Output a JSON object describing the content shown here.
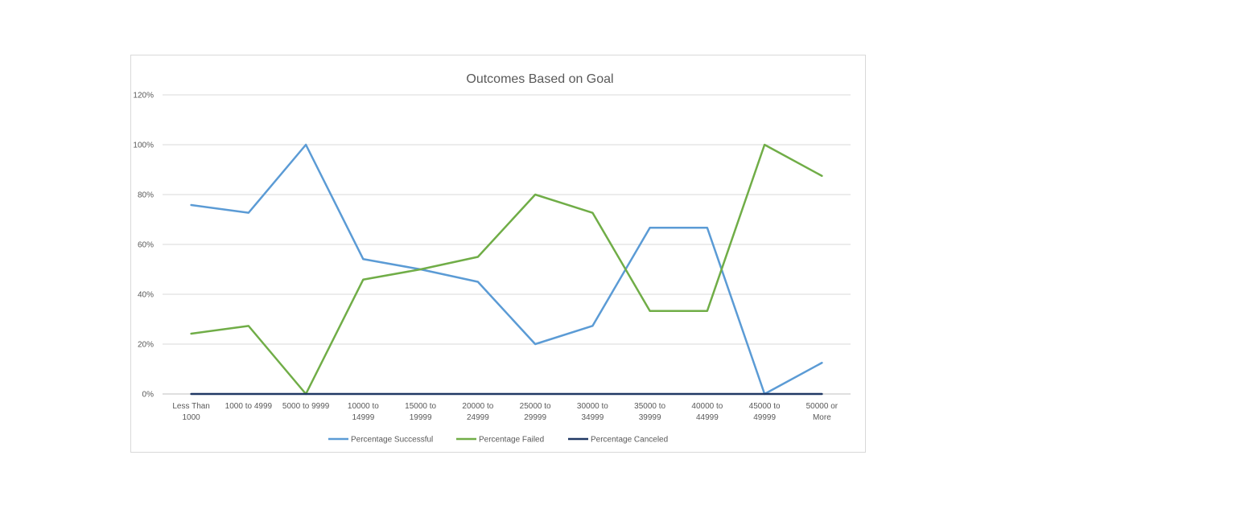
{
  "chart_data": {
    "type": "line",
    "title": "Outcomes Based on Goal",
    "categories": [
      [
        "Less Than",
        "1000"
      ],
      [
        "1000 to 4999"
      ],
      [
        "5000 to 9999"
      ],
      [
        "10000 to",
        "14999"
      ],
      [
        "15000 to",
        "19999"
      ],
      [
        "20000 to",
        "24999"
      ],
      [
        "25000 to",
        "29999"
      ],
      [
        "30000 to",
        "34999"
      ],
      [
        "35000 to",
        "39999"
      ],
      [
        "40000 to",
        "44999"
      ],
      [
        "45000 to",
        "49999"
      ],
      [
        "50000 or",
        "More"
      ]
    ],
    "ylim": [
      0,
      120
    ],
    "yticks": [
      "0%",
      "20%",
      "40%",
      "60%",
      "80%",
      "100%",
      "120%"
    ],
    "grid": true,
    "legend_position": "bottom",
    "series": [
      {
        "name": "Percentage Successful",
        "color": "#5b9bd5",
        "values": [
          75.8,
          72.7,
          100,
          54.1,
          50,
          45,
          20,
          27.3,
          66.7,
          66.7,
          0,
          12.5
        ]
      },
      {
        "name": "Percentage Failed",
        "color": "#70ad47",
        "values": [
          24.2,
          27.3,
          0,
          45.9,
          50,
          55,
          80,
          72.7,
          33.3,
          33.3,
          100,
          87.5
        ]
      },
      {
        "name": "Percentage Canceled",
        "color": "#203864",
        "values": [
          0,
          0,
          0,
          0,
          0,
          0,
          0,
          0,
          0,
          0,
          0,
          0
        ]
      }
    ]
  }
}
